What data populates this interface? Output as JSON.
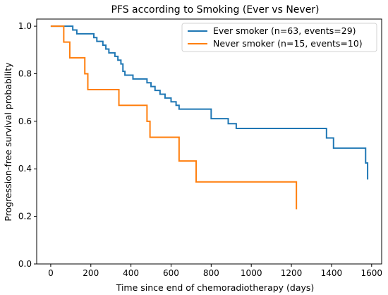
{
  "chart_data": {
    "type": "line",
    "title": "PFS according to Smoking (Ever vs Never)",
    "xlabel": "Time since end of chemoradiotherapy (days)",
    "ylabel": "Progression-free survival probability",
    "xlim": [
      -70,
      1650
    ],
    "ylim": [
      0.0,
      1.03
    ],
    "x_ticks": [
      0,
      200,
      400,
      600,
      800,
      1000,
      1200,
      1400,
      1600
    ],
    "y_ticks": [
      0.0,
      0.2,
      0.4,
      0.6,
      0.8,
      1.0
    ],
    "grid": false,
    "legend_position": "top-right",
    "series": [
      {
        "name": "Ever smoker (n=63, events=29)",
        "color": "#1f77b4",
        "steps": [
          [
            0,
            1.0
          ],
          [
            110,
            0.984
          ],
          [
            130,
            0.968
          ],
          [
            215,
            0.952
          ],
          [
            230,
            0.936
          ],
          [
            260,
            0.92
          ],
          [
            275,
            0.904
          ],
          [
            290,
            0.888
          ],
          [
            320,
            0.873
          ],
          [
            335,
            0.857
          ],
          [
            350,
            0.841
          ],
          [
            360,
            0.81
          ],
          [
            370,
            0.794
          ],
          [
            380,
            0.794
          ],
          [
            410,
            0.778
          ],
          [
            480,
            0.762
          ],
          [
            500,
            0.746
          ],
          [
            520,
            0.73
          ],
          [
            545,
            0.714
          ],
          [
            570,
            0.698
          ],
          [
            600,
            0.682
          ],
          [
            625,
            0.667
          ],
          [
            640,
            0.651
          ],
          [
            800,
            0.611
          ],
          [
            885,
            0.59
          ],
          [
            925,
            0.57
          ],
          [
            1375,
            0.53
          ],
          [
            1410,
            0.487
          ],
          [
            1570,
            0.425
          ],
          [
            1580,
            0.355
          ]
        ]
      },
      {
        "name": "Never smoker (n=15, events=10)",
        "color": "#ff7f0e",
        "steps": [
          [
            0,
            1.0
          ],
          [
            65,
            0.933
          ],
          [
            95,
            0.867
          ],
          [
            170,
            0.8
          ],
          [
            185,
            0.733
          ],
          [
            340,
            0.667
          ],
          [
            480,
            0.6
          ],
          [
            495,
            0.533
          ],
          [
            640,
            0.433
          ],
          [
            725,
            0.345
          ],
          [
            1225,
            0.23
          ]
        ]
      }
    ]
  }
}
